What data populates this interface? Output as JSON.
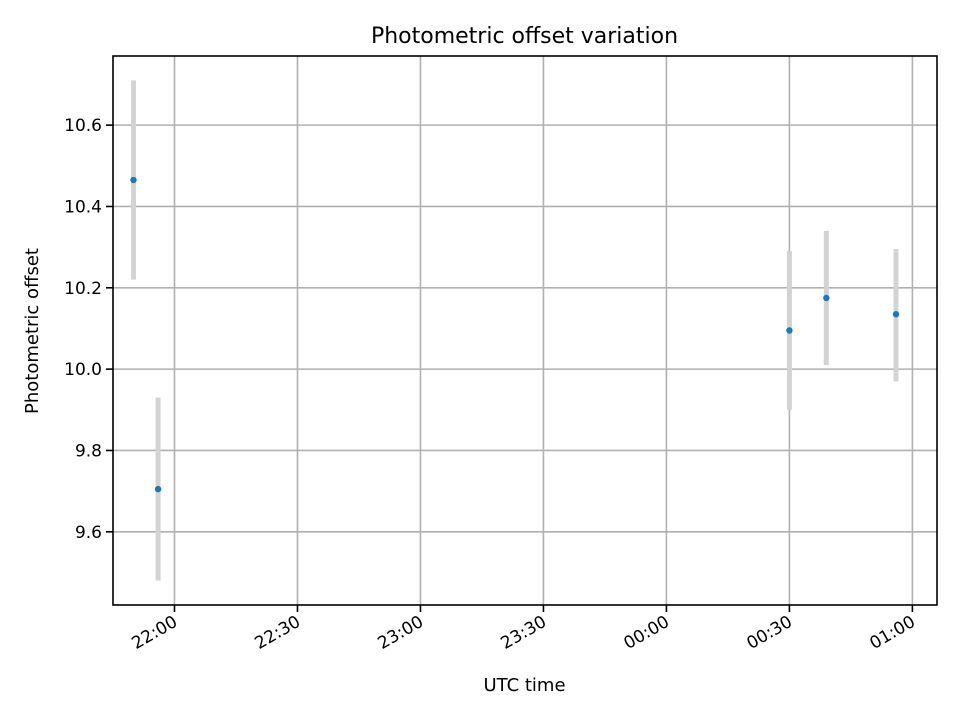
{
  "chart_data": {
    "type": "scatter",
    "title": "Photometric offset variation",
    "xlabel": "UTC time",
    "ylabel": "Photometric offset",
    "x_axis_type": "time",
    "x_ticks": [
      "22:00",
      "22:30",
      "23:00",
      "23:30",
      "00:00",
      "00:30",
      "01:00"
    ],
    "y_ticks": [
      "9.6",
      "9.8",
      "10.0",
      "10.2",
      "10.4",
      "10.6"
    ],
    "xlim": [
      "21:45",
      "01:06"
    ],
    "ylim": [
      9.42,
      10.77
    ],
    "grid": true,
    "point_color": "#1f77b4",
    "errorbar_color": "#d3d3d3",
    "points": [
      {
        "x": "21:50",
        "y": 10.465,
        "ylow": 10.22,
        "yhigh": 10.71
      },
      {
        "x": "21:56",
        "y": 9.705,
        "ylow": 9.48,
        "yhigh": 9.93
      },
      {
        "x": "00:30",
        "y": 10.095,
        "ylow": 9.9,
        "yhigh": 10.29
      },
      {
        "x": "00:39",
        "y": 10.175,
        "ylow": 10.01,
        "yhigh": 10.34
      },
      {
        "x": "00:56",
        "y": 10.135,
        "ylow": 9.97,
        "yhigh": 10.295
      }
    ]
  }
}
